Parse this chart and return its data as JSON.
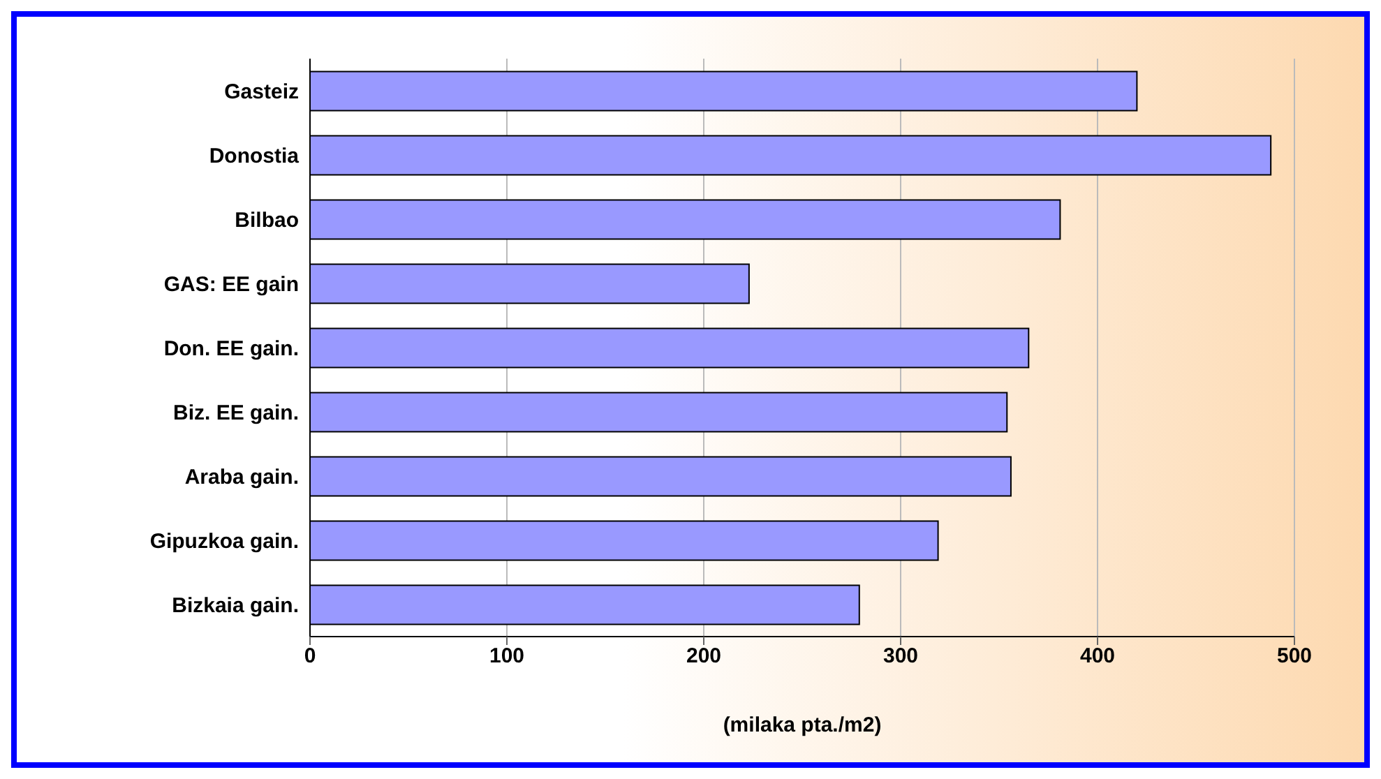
{
  "chart_data": {
    "type": "bar",
    "orientation": "horizontal",
    "xlabel": "(milaka pta./m2)",
    "categories": [
      "Gasteiz",
      "Donostia",
      "Bilbao",
      "GAS: EE gain",
      "Don. EE gain.",
      "Biz. EE gain.",
      "Araba gain.",
      "Gipuzkoa gain.",
      "Bizkaia gain."
    ],
    "values": [
      420,
      488,
      381,
      223,
      365,
      354,
      356,
      319,
      279
    ],
    "color": "#9999ff",
    "xlim": [
      0,
      500
    ],
    "xticks": [
      0,
      100,
      200,
      300,
      400,
      500
    ],
    "grid": "x"
  }
}
